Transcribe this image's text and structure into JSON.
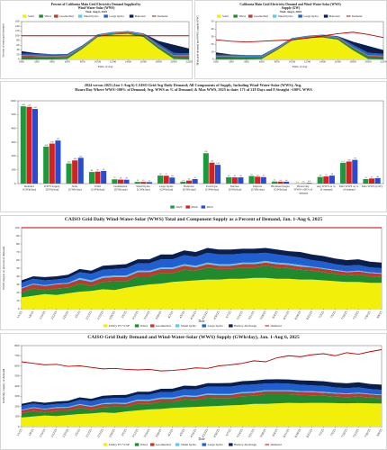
{
  "chart_data": [
    {
      "type": "area",
      "stacked": true,
      "legend": "top",
      "title": "Percent of California Main Grid Electricity Demand Supplied by Wind-Water-Solar (WWS)",
      "subtitle": "Wed. Aug 6, 2025",
      "x_label": "Time of day",
      "y_label": "Percent of main grid demand",
      "categories": [
        "0:00",
        "2:00",
        "4:00",
        "6:00",
        "8:00",
        "10:00",
        "12:00",
        "14:00",
        "16:00",
        "18:00",
        "20:00",
        "22:00"
      ],
      "ylim": [
        0,
        160
      ],
      "yticks": [
        0,
        20,
        40,
        60,
        80,
        100,
        120,
        140,
        160
      ],
      "series": [
        {
          "name": "Solar",
          "color": "#f2ef0a",
          "values": [
            0,
            0,
            0,
            2,
            45,
            95,
            105,
            108,
            95,
            45,
            2,
            0
          ]
        },
        {
          "name": "Wind",
          "color": "#1f8a2e",
          "values": [
            12,
            11,
            10,
            9,
            6,
            4,
            4,
            5,
            7,
            9,
            11,
            12
          ]
        },
        {
          "name": "Geothermal",
          "color": "#c0392b",
          "values": [
            4,
            4,
            4,
            4,
            3,
            3,
            3,
            3,
            3,
            3,
            3,
            4
          ]
        },
        {
          "name": "Small hydro",
          "color": "#5ac8f0",
          "values": [
            1,
            1,
            1,
            1,
            1,
            1,
            1,
            1,
            1,
            1,
            1,
            1
          ]
        },
        {
          "name": "Large hydro",
          "color": "#1f5fd1",
          "values": [
            8,
            7,
            7,
            7,
            5,
            3,
            3,
            3,
            4,
            8,
            10,
            9
          ]
        },
        {
          "name": "Batteries",
          "color": "#0b1f4f",
          "values": [
            10,
            3,
            0,
            0,
            0,
            0,
            0,
            0,
            0,
            12,
            35,
            20
          ]
        },
        {
          "name": "Demand",
          "kind": "line",
          "color": "#c00000",
          "values": [
            100,
            100,
            100,
            100,
            100,
            100,
            100,
            100,
            100,
            100,
            100,
            100
          ]
        }
      ]
    },
    {
      "type": "area",
      "stacked": true,
      "legend": "top",
      "title": "California Main Grid Electricity Demand and Wind-Water-Solar (WWS) Supply (GW)",
      "subtitle": "Wed. Aug 6, 2025",
      "x_label": "Time of day",
      "y_label": "Main grid demand and WWS supply (GW)",
      "categories": [
        "0:00",
        "2:00",
        "4:00",
        "6:00",
        "8:00",
        "10:00",
        "12:00",
        "14:00",
        "16:00",
        "18:00",
        "20:00",
        "22:00"
      ],
      "ylim": [
        0,
        50
      ],
      "yticks": [
        0,
        10,
        20,
        30,
        40,
        50
      ],
      "series": [
        {
          "name": "Solar",
          "color": "#f2ef0a",
          "values": [
            0,
            0,
            0,
            0.5,
            12,
            25,
            28,
            29,
            26,
            12,
            0.5,
            0
          ]
        },
        {
          "name": "Wind",
          "color": "#1f8a2e",
          "values": [
            3,
            3,
            2.5,
            2,
            1.5,
            1,
            1,
            1.5,
            2,
            3,
            3.5,
            3.5
          ]
        },
        {
          "name": "Geothermal",
          "color": "#c0392b",
          "values": [
            1,
            1,
            1,
            1,
            1,
            1,
            1,
            1,
            1,
            1,
            1,
            1
          ]
        },
        {
          "name": "Small hydro",
          "color": "#5ac8f0",
          "values": [
            0.3,
            0.3,
            0.3,
            0.3,
            0.3,
            0.3,
            0.3,
            0.3,
            0.3,
            0.3,
            0.3,
            0.3
          ]
        },
        {
          "name": "Large hydro",
          "color": "#1f5fd1",
          "values": [
            2,
            1.8,
            1.8,
            1.8,
            1.5,
            1,
            1,
            1,
            1.5,
            3,
            3.5,
            2.5
          ]
        },
        {
          "name": "Batteries",
          "color": "#0b1f4f",
          "values": [
            3,
            0.5,
            0,
            0,
            0,
            0,
            0,
            0,
            0,
            4,
            9,
            5
          ]
        },
        {
          "name": "Demand",
          "kind": "line",
          "color": "#c00000",
          "values": [
            26,
            24,
            23,
            24,
            25,
            26,
            28,
            31,
            34,
            36,
            33,
            29
          ]
        }
      ]
    },
    {
      "type": "bar",
      "legend": "bottom",
      "title": "2024 versus 2025 (Jan 1-Aug 6) CAISO Grid Avg Daily Demand; All Components of Supply, Including Wind-Water-Solar (WWS); Avg. Hours/Day Where WWS>100% of Demand; Avg. WWS as % of Demand; & Max WWS, 2025 to date: 171 of 218 Days and 8 Straight >100% WWS",
      "categories": [
        "Demand (GWh/day)",
        "WWS Supply (GWh/day)",
        "Solar (GWh/day)",
        "Wind (GWh/day)",
        "Geothermal (GWh/day)",
        "Small hydro (GWh/day)",
        "Large hydro (GWh/day)",
        "Batteries (GWh/day)",
        "Fossil gas (GWh/day)",
        "Nuclear (GWh/day)",
        "Imports (GWh/day)",
        "Biomass/biogas (GWh/day)",
        "Hours/day WWS>100% of demand",
        "Avg WWS as % of demand",
        "Max WWS as % of demand",
        "Max WWS (GW)"
      ],
      "ylim": [
        0,
        600
      ],
      "yticks": [
        0,
        100,
        200,
        300,
        400,
        500,
        600
      ],
      "series": [
        {
          "name": "2023",
          "color": "#1a9a3a",
          "values": [
            560,
            268,
            146,
            84,
            31,
            12,
            58,
            14,
            220,
            46,
            55,
            15,
            1.2,
            48,
            151,
            33
          ]
        },
        {
          "name": "2024",
          "color": "#d62020",
          "values": [
            556,
            290,
            168,
            87,
            29,
            12,
            57,
            22,
            152,
            45,
            50,
            14,
            2.6,
            52,
            160,
            37
          ]
        },
        {
          "name": "2025",
          "color": "#2a4bd0",
          "values": [
            541,
            312,
            187,
            92,
            28,
            11,
            44,
            33,
            136,
            45,
            47,
            14,
            4.9,
            58,
            172,
            40
          ]
        }
      ]
    },
    {
      "type": "area",
      "stacked": true,
      "legend": "bottom",
      "title": "CAISO Grid Daily Wind-Water-Solar (WWS) Total and Component Supply as a Percent of Demand, Jan. 1-Aug 6, 2025",
      "x_label": "Date",
      "y_label": "WWS supply as percent of demand",
      "categories": [
        "1/1/25",
        "1/8/25",
        "1/15/25",
        "1/22/25",
        "1/29/25",
        "2/5/25",
        "2/12/25",
        "2/19/25",
        "2/26/25",
        "3/5/25",
        "3/12/25",
        "3/19/25",
        "3/26/25",
        "4/2/25",
        "4/9/25",
        "4/16/25",
        "4/23/25",
        "4/30/25",
        "5/7/25",
        "5/14/25",
        "5/21/25",
        "5/28/25",
        "6/4/25",
        "6/11/25",
        "6/18/25",
        "6/25/25",
        "7/2/25",
        "7/9/25",
        "7/16/25",
        "7/23/25",
        "7/30/25",
        "8/6/25"
      ],
      "ylim": [
        0,
        100
      ],
      "yticks": [
        0,
        10,
        20,
        30,
        40,
        50,
        60,
        70,
        80,
        90,
        100
      ],
      "series": [
        {
          "name": "Utility PV+CSP",
          "color": "#f2ef0a",
          "values": [
            14,
            16,
            18,
            17,
            19,
            21,
            22,
            24,
            23,
            26,
            28,
            30,
            31,
            33,
            34,
            35,
            36,
            36,
            37,
            37,
            38,
            38,
            37,
            37,
            36,
            36,
            35,
            34,
            33,
            33,
            32,
            32
          ]
        },
        {
          "name": "Wind",
          "color": "#1f8a2e",
          "values": [
            6,
            9,
            5,
            8,
            7,
            10,
            6,
            9,
            11,
            8,
            12,
            10,
            13,
            11,
            14,
            12,
            15,
            13,
            12,
            14,
            13,
            15,
            14,
            13,
            12,
            11,
            10,
            9,
            8,
            9,
            8,
            7
          ]
        },
        {
          "name": "Geothermal",
          "color": "#c0392b",
          "values": [
            5,
            5,
            5,
            5,
            5,
            5,
            5,
            5,
            5,
            5,
            5,
            5,
            5,
            5,
            5,
            4,
            4,
            4,
            4,
            4,
            4,
            4,
            4,
            4,
            4,
            4,
            4,
            4,
            4,
            4,
            4,
            4
          ]
        },
        {
          "name": "Small hydro",
          "color": "#5ac8f0",
          "values": [
            1,
            1,
            1,
            1,
            1,
            2,
            2,
            2,
            2,
            2,
            2,
            2,
            2,
            2,
            2,
            2,
            2,
            2,
            2,
            2,
            2,
            2,
            2,
            2,
            2,
            1,
            1,
            1,
            1,
            1,
            1,
            1
          ]
        },
        {
          "name": "Large hydro",
          "color": "#1f5fd1",
          "values": [
            6,
            6,
            6,
            5,
            6,
            7,
            8,
            8,
            8,
            9,
            9,
            9,
            10,
            10,
            11,
            11,
            12,
            12,
            12,
            11,
            11,
            10,
            10,
            9,
            9,
            8,
            8,
            7,
            7,
            7,
            6,
            6
          ]
        },
        {
          "name": "Battery discharge",
          "color": "#0b1f4f",
          "values": [
            3,
            3,
            4,
            4,
            4,
            4,
            4,
            5,
            5,
            5,
            5,
            5,
            6,
            6,
            6,
            6,
            6,
            6,
            6,
            6,
            6,
            6,
            6,
            6,
            7,
            7,
            7,
            7,
            7,
            7,
            7,
            7
          ]
        },
        {
          "name": "Demand",
          "kind": "line",
          "color": "#c00000",
          "values": [
            100,
            100,
            100,
            100,
            100,
            100,
            100,
            100,
            100,
            100,
            100,
            100,
            100,
            100,
            100,
            100,
            100,
            100,
            100,
            100,
            100,
            100,
            100,
            100,
            100,
            100,
            100,
            100,
            100,
            100,
            100,
            100
          ]
        }
      ]
    },
    {
      "type": "area",
      "stacked": true,
      "legend": "bottom",
      "title": "CAISO Grid Daily Demand and Wind-Water-Solar (WWS) Supply (GWh/day), Jan. 1-Aug 6, 2025",
      "x_label": "Date",
      "y_label": "GWh/day supply or demand",
      "categories": [
        "1/1/25",
        "1/8/25",
        "1/15/25",
        "1/22/25",
        "1/29/25",
        "2/5/25",
        "2/12/25",
        "2/19/25",
        "2/26/25",
        "3/5/25",
        "3/12/25",
        "3/19/25",
        "3/26/25",
        "4/2/25",
        "4/9/25",
        "4/16/25",
        "4/23/25",
        "4/30/25",
        "5/7/25",
        "5/14/25",
        "5/21/25",
        "5/28/25",
        "6/4/25",
        "6/11/25",
        "6/18/25",
        "6/25/25",
        "7/2/25",
        "7/9/25",
        "7/16/25",
        "7/23/25",
        "7/30/25",
        "8/6/25"
      ],
      "ylim": [
        0,
        800
      ],
      "yticks": [
        0,
        100,
        200,
        300,
        400,
        500,
        600,
        700,
        800
      ],
      "series": [
        {
          "name": "Utility PV+CSP",
          "color": "#f2ef0a",
          "values": [
            90,
            100,
            110,
            105,
            115,
            125,
            130,
            140,
            135,
            150,
            160,
            170,
            175,
            185,
            190,
            195,
            200,
            205,
            210,
            215,
            225,
            225,
            230,
            235,
            232,
            235,
            235,
            232,
            230,
            232,
            230,
            228
          ]
        },
        {
          "name": "Wind",
          "color": "#1f8a2e",
          "values": [
            40,
            55,
            30,
            50,
            42,
            60,
            36,
            52,
            62,
            45,
            66,
            55,
            70,
            60,
            78,
            68,
            85,
            76,
            72,
            85,
            80,
            95,
            90,
            85,
            80,
            75,
            70,
            65,
            60,
            66,
            58,
            52
          ]
        },
        {
          "name": "Geothermal",
          "color": "#c0392b",
          "values": [
            30,
            30,
            30,
            30,
            30,
            30,
            30,
            30,
            30,
            30,
            30,
            30,
            30,
            30,
            30,
            30,
            30,
            30,
            30,
            30,
            30,
            30,
            30,
            30,
            30,
            30,
            30,
            30,
            30,
            30,
            30,
            30
          ]
        },
        {
          "name": "Small hydro",
          "color": "#5ac8f0",
          "values": [
            6,
            6,
            6,
            7,
            7,
            8,
            9,
            9,
            10,
            10,
            11,
            11,
            12,
            12,
            12,
            12,
            12,
            12,
            11,
            11,
            11,
            10,
            10,
            10,
            9,
            9,
            9,
            8,
            8,
            8,
            7,
            7
          ]
        },
        {
          "name": "Large hydro",
          "color": "#1f5fd1",
          "values": [
            38,
            37,
            36,
            32,
            36,
            42,
            46,
            45,
            46,
            50,
            50,
            50,
            54,
            55,
            60,
            62,
            68,
            70,
            72,
            70,
            70,
            66,
            68,
            64,
            62,
            58,
            58,
            52,
            52,
            52,
            46,
            46
          ]
        },
        {
          "name": "Battery discharge",
          "color": "#0b1f4f",
          "values": [
            20,
            20,
            24,
            24,
            24,
            24,
            24,
            28,
            28,
            28,
            28,
            28,
            32,
            32,
            34,
            34,
            34,
            36,
            36,
            38,
            38,
            40,
            40,
            42,
            44,
            46,
            46,
            48,
            48,
            50,
            50,
            52
          ]
        },
        {
          "name": "Demand",
          "kind": "line",
          "color": "#c00000",
          "values": [
            640,
            625,
            610,
            615,
            595,
            600,
            585,
            570,
            575,
            565,
            560,
            565,
            550,
            555,
            565,
            580,
            575,
            600,
            610,
            625,
            650,
            640,
            680,
            700,
            690,
            710,
            720,
            700,
            730,
            715,
            740,
            760
          ]
        }
      ]
    }
  ]
}
